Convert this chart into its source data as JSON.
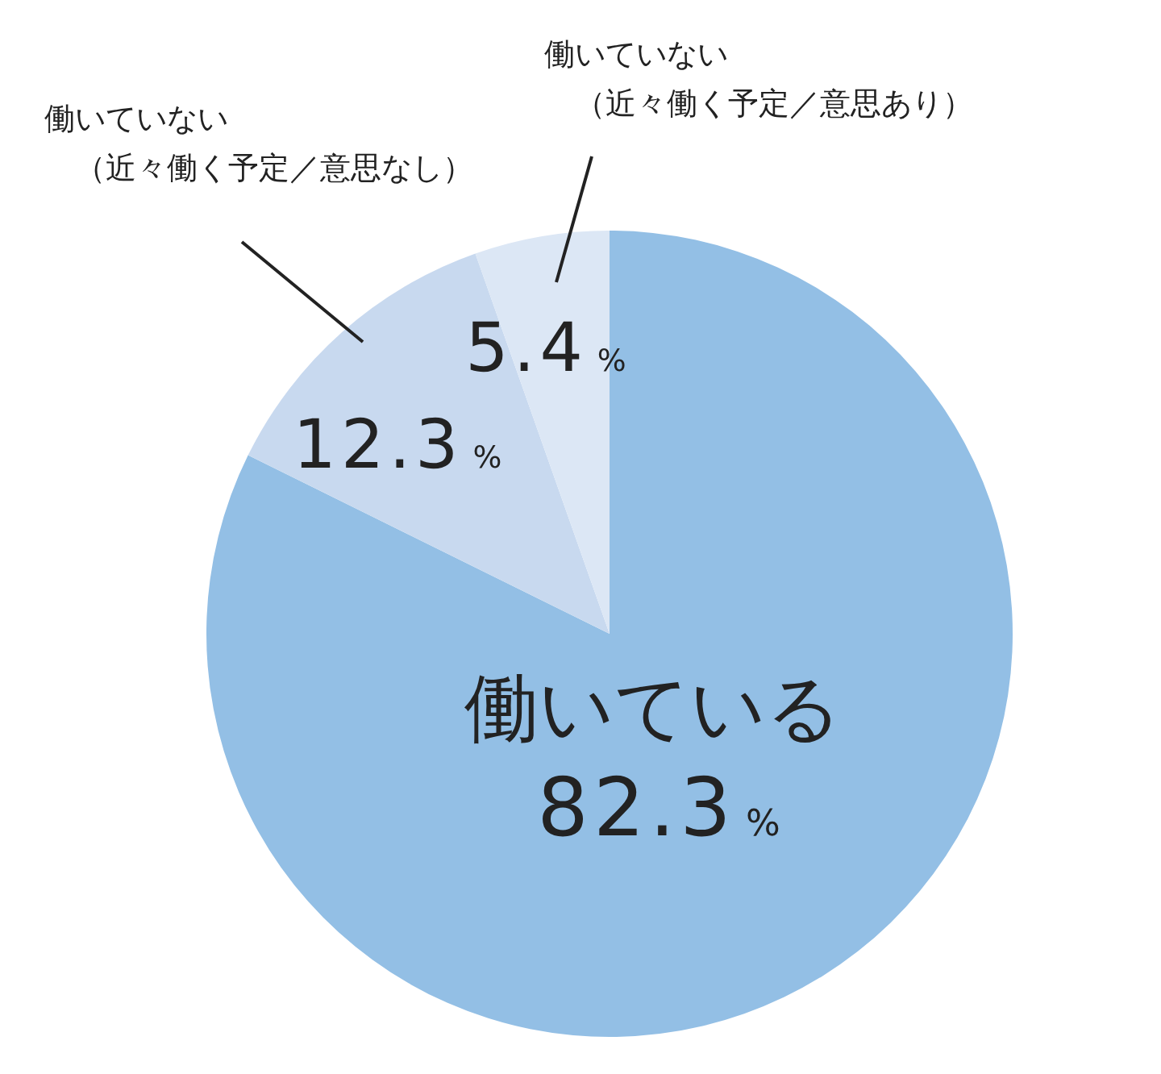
{
  "chart_data": {
    "type": "pie",
    "categories": [
      "働いている",
      "働いていない（近々働く予定／意思なし）",
      "働いていない（近々働く予定／意思あり）"
    ],
    "values": [
      82.3,
      12.3,
      5.4
    ],
    "colors": [
      "#93bfe5",
      "#c8d9ef",
      "#dce7f5"
    ],
    "value_labels": [
      "82.3%",
      "12.3%",
      "5.4%"
    ]
  }
}
